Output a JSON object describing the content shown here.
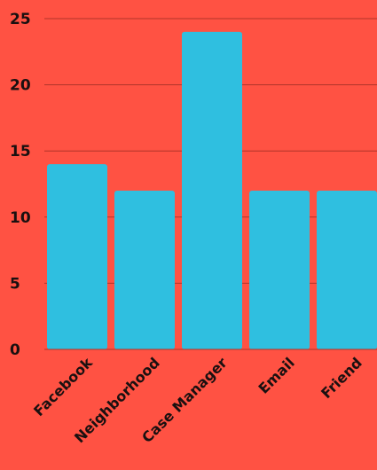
{
  "chart_data": {
    "type": "bar",
    "categories": [
      "Facebook",
      "Neighborhood",
      "Case Manager",
      "Email",
      "Friend"
    ],
    "values": [
      14,
      12,
      24,
      12,
      12
    ],
    "title": "",
    "xlabel": "",
    "ylabel": "",
    "ylim": [
      0,
      25
    ],
    "yticks": [
      0,
      5,
      10,
      15,
      20,
      25
    ],
    "grid": true,
    "legend": "none",
    "colors": {
      "background": "#ff5243",
      "bar": "#2fbfe0",
      "grid": "#b0342a",
      "text": "#1a1010"
    }
  }
}
